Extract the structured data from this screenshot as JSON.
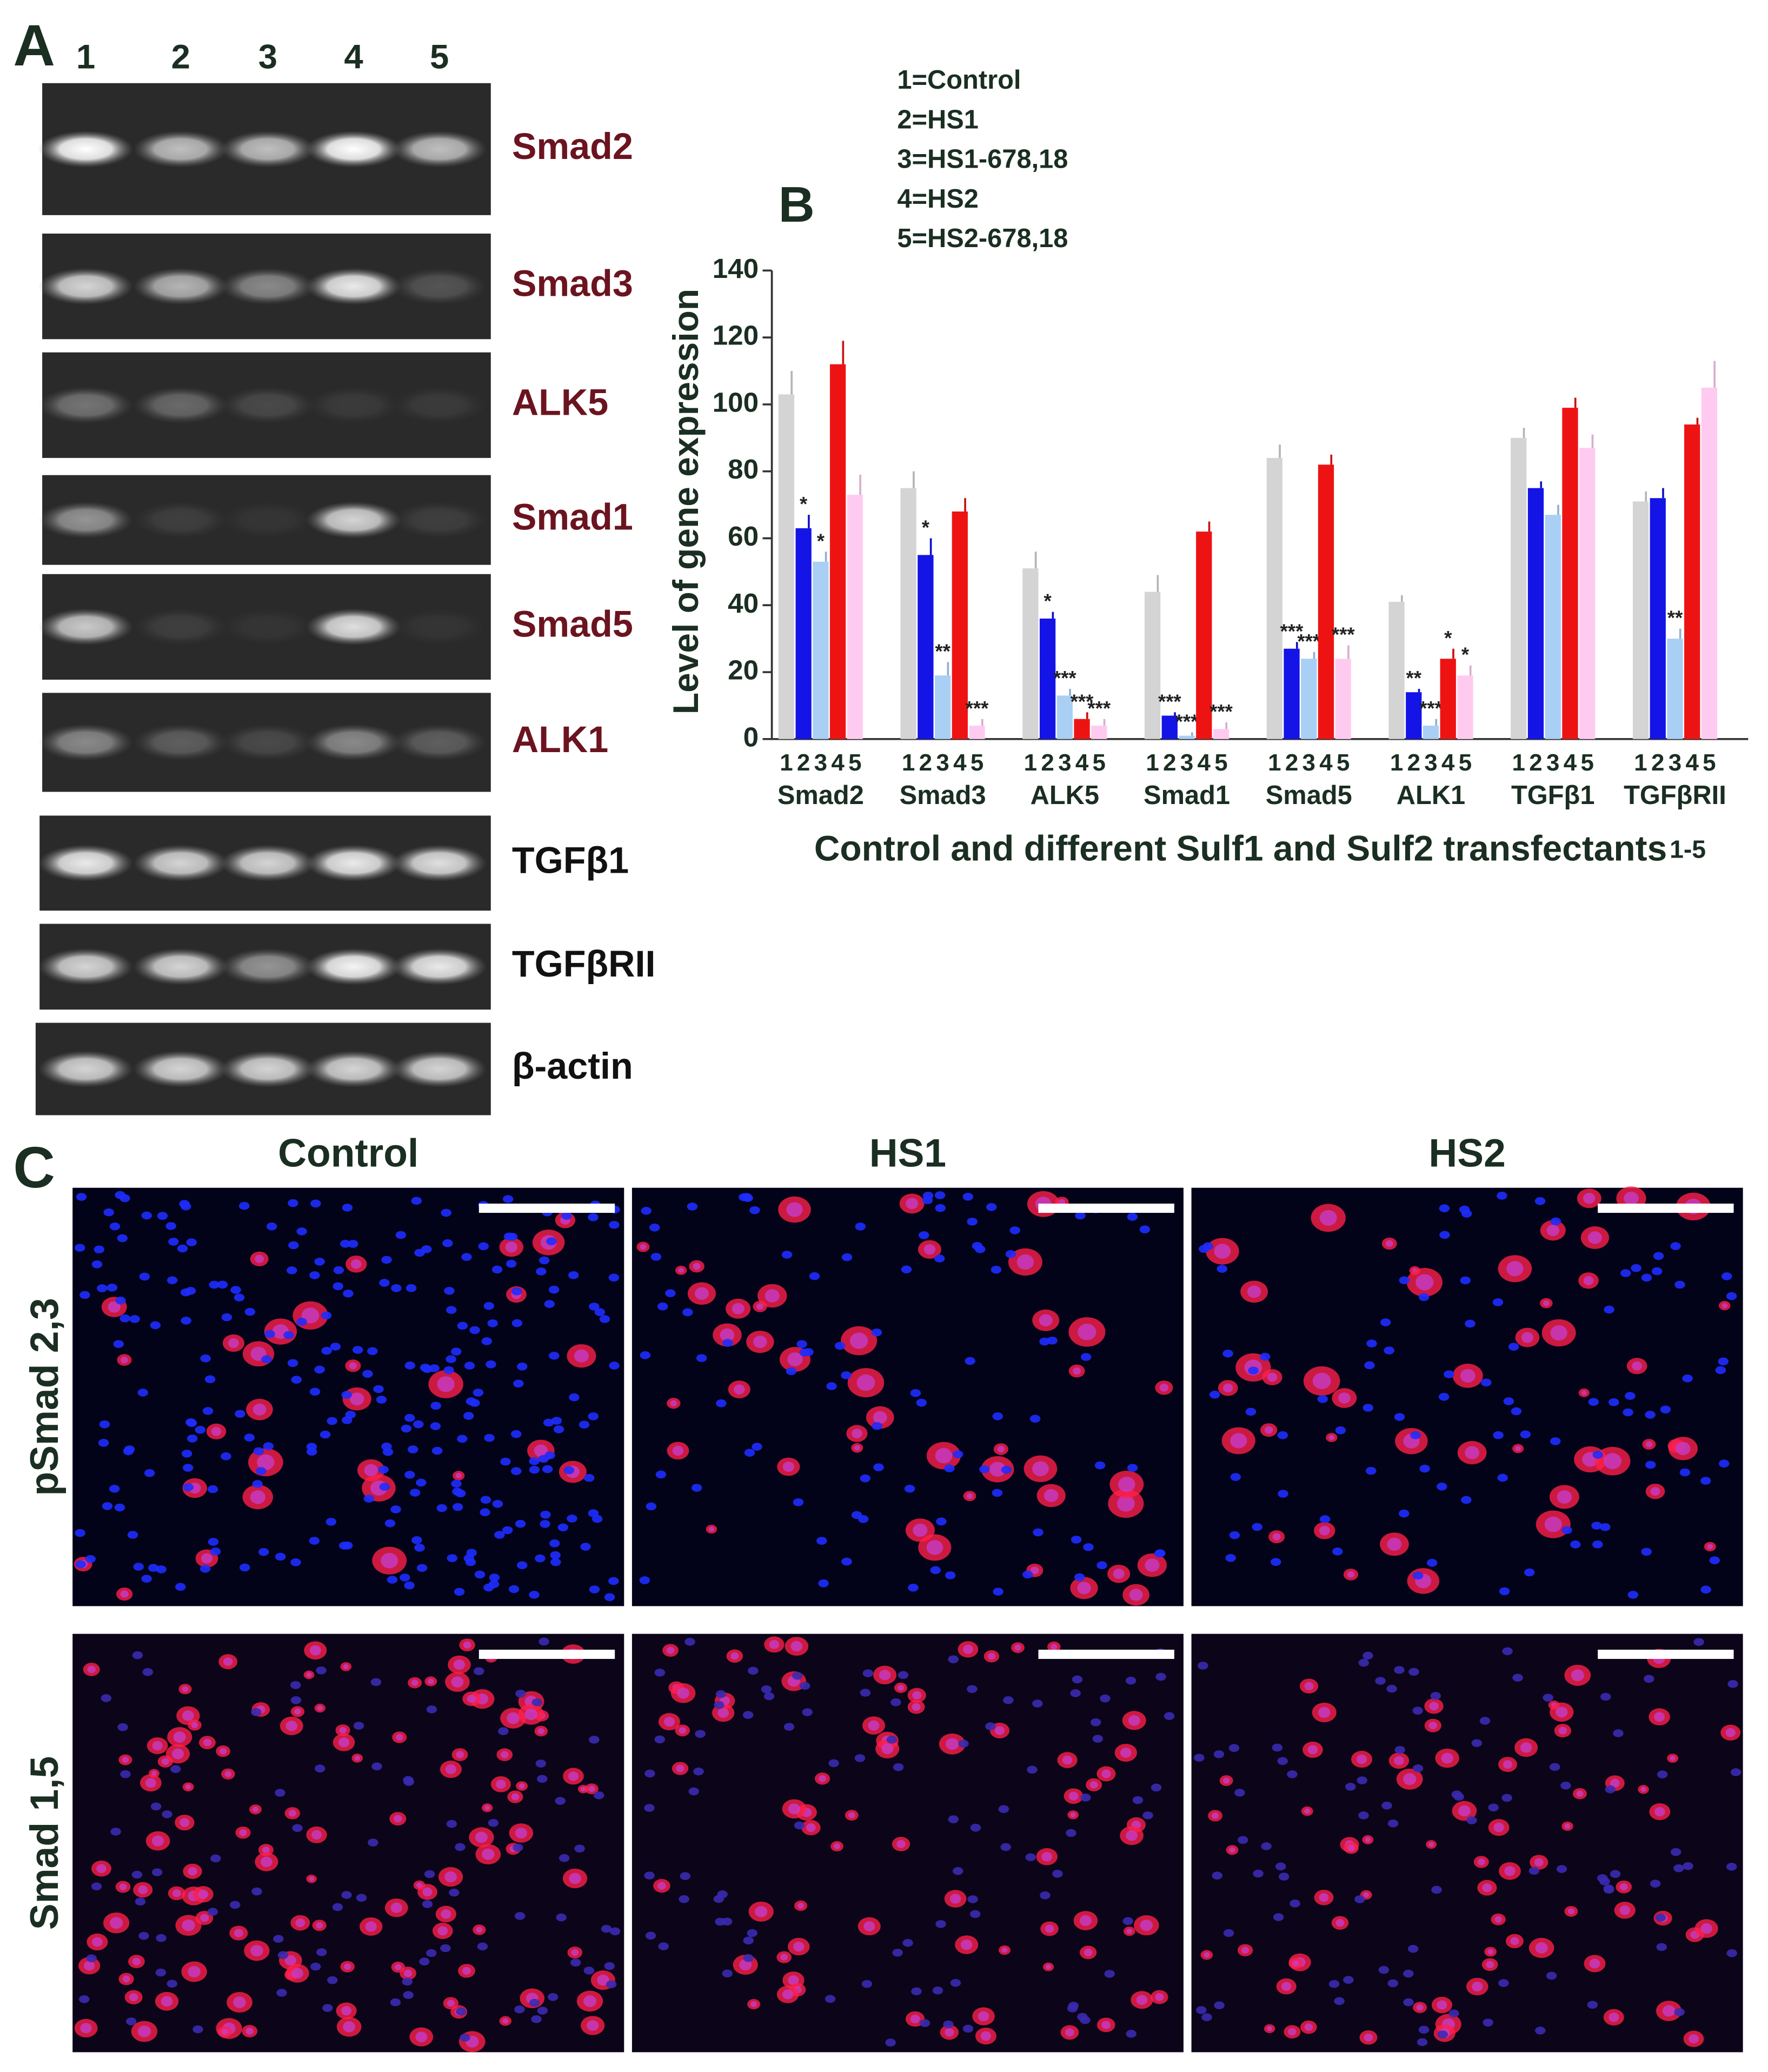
{
  "panel_a": {
    "label": "A",
    "lanes": [
      "1",
      "2",
      "3",
      "4",
      "5"
    ],
    "genes": [
      "Smad2",
      "Smad3",
      "ALK5",
      "Smad1",
      "Smad5",
      "ALK1",
      "TGFβ1",
      "TGFβRII",
      "β-actin"
    ]
  },
  "chart_data": {
    "type": "bar",
    "panel_label": "B",
    "legend": [
      "1=Control",
      "2=HS1",
      "3=HS1-678,18",
      "4=HS2",
      "5=HS2-678,18"
    ],
    "ylabel": "Level of gene expression",
    "xlabel": "Control and different Sulf1 and Sulf2 transfectants",
    "xlabel_suffix": "1-5",
    "categories": [
      "Smad2",
      "Smad3",
      "ALK5",
      "Smad1",
      "Smad5",
      "ALK1",
      "TGFβ1",
      "TGFβRII"
    ],
    "ylim": [
      0,
      140
    ],
    "yticks": [
      0,
      20,
      40,
      60,
      80,
      100,
      120,
      140
    ],
    "series": [
      {
        "name": "1",
        "color": "#d4d4d4",
        "values": [
          103,
          75,
          51,
          44,
          84,
          41,
          90,
          71
        ],
        "errors": [
          7,
          5,
          5,
          5,
          4,
          2,
          3,
          3
        ],
        "stars": [
          null,
          null,
          null,
          null,
          null,
          null,
          null,
          null
        ]
      },
      {
        "name": "2",
        "color": "#1414e6",
        "values": [
          63,
          55,
          36,
          7,
          27,
          14,
          75,
          72
        ],
        "errors": [
          4,
          5,
          2,
          1,
          2,
          1,
          2,
          3
        ],
        "stars": [
          "*",
          "*",
          "*",
          "***",
          "***",
          "**",
          null,
          null
        ]
      },
      {
        "name": "3",
        "color": "#a9cff4",
        "values": [
          53,
          19,
          13,
          1,
          24,
          4,
          67,
          30
        ],
        "errors": [
          3,
          4,
          2,
          1,
          2,
          2,
          3,
          3
        ],
        "stars": [
          "*",
          "**",
          "***",
          "***",
          "***",
          "***",
          null,
          "**"
        ]
      },
      {
        "name": "4",
        "color": "#ee1313",
        "values": [
          112,
          68,
          6,
          62,
          82,
          24,
          99,
          94
        ],
        "errors": [
          7,
          4,
          2,
          3,
          3,
          3,
          3,
          2
        ],
        "stars": [
          null,
          null,
          "***",
          null,
          null,
          "*",
          null,
          null
        ]
      },
      {
        "name": "5",
        "color": "#ffcaf0",
        "values": [
          73,
          4,
          4,
          3,
          24,
          19,
          87,
          105
        ],
        "errors": [
          6,
          2,
          2,
          2,
          4,
          3,
          4,
          8
        ],
        "stars": [
          null,
          "***",
          "***",
          "***",
          "***",
          "*",
          null,
          null
        ]
      }
    ]
  },
  "panel_c": {
    "label": "C",
    "columns": [
      "Control",
      "HS1",
      "HS2"
    ],
    "rows": [
      "pSmad 2,3",
      "Smad 1,5"
    ]
  }
}
